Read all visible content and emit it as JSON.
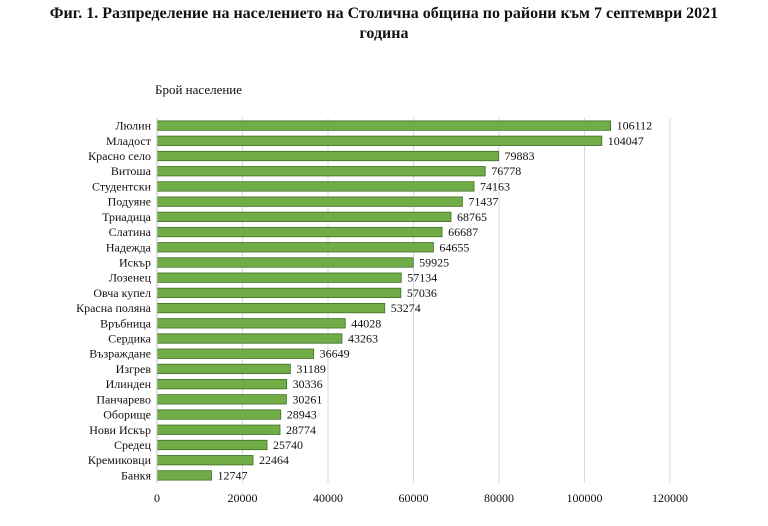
{
  "title": {
    "line1": "Фиг. 1. Разпределение на населението на Столична община по райони към 7 септември 2021",
    "line2": "година"
  },
  "chart_data": {
    "type": "bar",
    "orientation": "horizontal",
    "ylabel": "Брой население",
    "xlabel": "",
    "categories": [
      "Люлин",
      "Младост",
      "Красно село",
      "Витоша",
      "Студентски",
      "Подуяне",
      "Триадица",
      "Слатина",
      "Надежда",
      "Искър",
      "Лозенец",
      "Овча купел",
      "Красна поляна",
      "Връбница",
      "Сердика",
      "Възраждане",
      "Изгрев",
      "Илинден",
      "Панчарево",
      "Оборище",
      "Нови Искър",
      "Средец",
      "Кремиковци",
      "Банкя"
    ],
    "values": [
      106112,
      104047,
      79883,
      76778,
      74163,
      71437,
      68765,
      66687,
      64655,
      59925,
      57134,
      57036,
      53274,
      44028,
      43263,
      36649,
      31189,
      30336,
      30261,
      28943,
      28774,
      25740,
      22464,
      12747
    ],
    "xlim": [
      0,
      120000
    ],
    "xticks": [
      0,
      20000,
      40000,
      60000,
      80000,
      100000,
      120000
    ],
    "grid": true,
    "bar_color": "#70ad47",
    "bar_edge_color": "#3f6e27",
    "data_labels": true
  }
}
